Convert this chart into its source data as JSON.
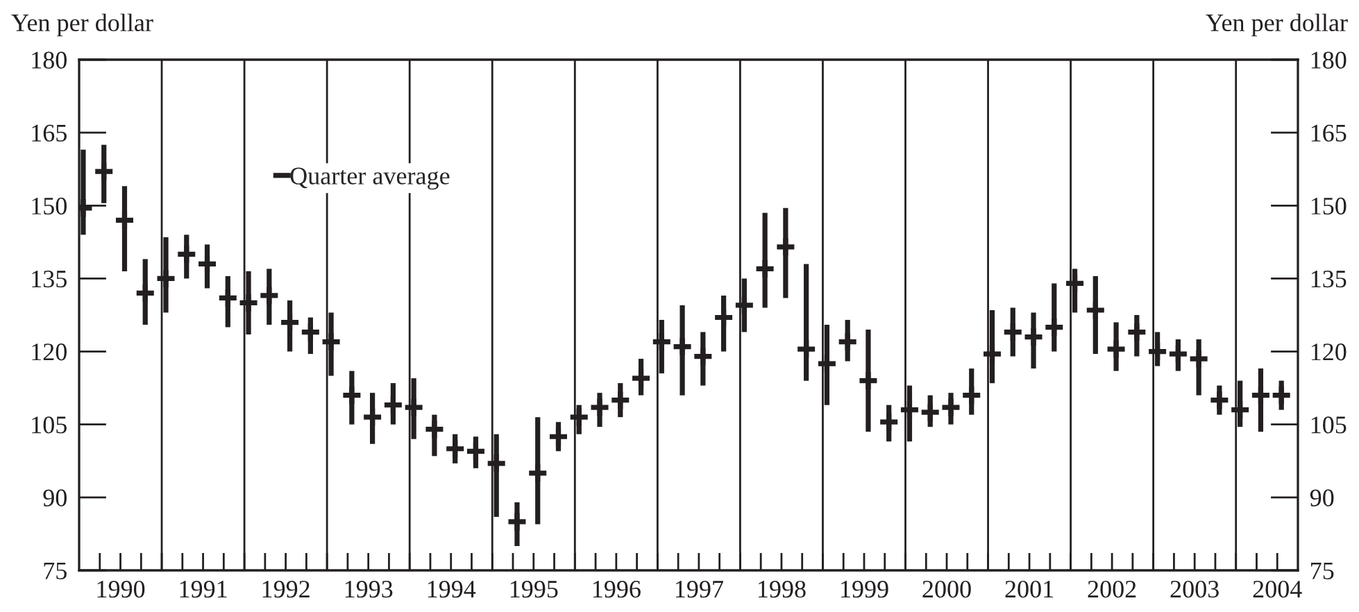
{
  "chart_data": {
    "type": "scatter",
    "ylabel": "Yen per dollar",
    "y2label": "Yen per dollar",
    "x": [
      1990.05,
      1990.3,
      1990.55,
      1990.8,
      1991.05,
      1991.3,
      1991.55,
      1991.8,
      1992.05,
      1992.3,
      1992.55,
      1992.8,
      1993.05,
      1993.3,
      1993.55,
      1993.8,
      1994.05,
      1994.3,
      1994.55,
      1994.8,
      1995.05,
      1995.3,
      1995.55,
      1995.8,
      1996.05,
      1996.3,
      1996.55,
      1996.8,
      1997.05,
      1997.3,
      1997.55,
      1997.8,
      1998.05,
      1998.3,
      1998.55,
      1998.8,
      1999.05,
      1999.3,
      1999.55,
      1999.8,
      2000.05,
      2000.3,
      2000.55,
      2000.8,
      2001.05,
      2001.3,
      2001.55,
      2001.8,
      2002.05,
      2002.3,
      2002.55,
      2002.8,
      2003.05,
      2003.3,
      2003.55,
      2003.8,
      2004.05,
      2004.3,
      2004.55
    ],
    "series": [
      {
        "name": "Quarter average",
        "color": "#231f20",
        "values": [
          149.5,
          157,
          147,
          132,
          135,
          140,
          138,
          131,
          130,
          131.5,
          126,
          124,
          122,
          111,
          106.5,
          109,
          108.5,
          104,
          100,
          99.5,
          97,
          85,
          95,
          102.5,
          106.5,
          108.5,
          110,
          114.5,
          122,
          121,
          119,
          127,
          129.5,
          137,
          141.5,
          120.5,
          117.5,
          122,
          114,
          105.5,
          108,
          107.5,
          108.5,
          111,
          119.5,
          124,
          123,
          125,
          134,
          128.5,
          120.5,
          124,
          120,
          119.5,
          118.5,
          110,
          108,
          111,
          111
        ],
        "errors": [
          [
            144,
            161.5
          ],
          [
            150.5,
            162.5
          ],
          [
            136.5,
            154
          ],
          [
            125.5,
            139
          ],
          [
            128,
            143.5
          ],
          [
            135,
            144
          ],
          [
            133,
            142
          ],
          [
            125,
            135.5
          ],
          [
            123.5,
            136.5
          ],
          [
            125.5,
            137
          ],
          [
            120,
            130.5
          ],
          [
            119.5,
            127
          ],
          [
            115,
            128
          ],
          [
            105,
            116
          ],
          [
            101,
            111.5
          ],
          [
            105,
            113.5
          ],
          [
            102,
            114.5
          ],
          [
            98.5,
            107
          ],
          [
            97,
            103
          ],
          [
            96,
            102.5
          ],
          [
            86,
            103
          ],
          [
            80,
            89
          ],
          [
            84.5,
            106.5
          ],
          [
            99.5,
            105.5
          ],
          [
            103,
            109
          ],
          [
            104.5,
            111.5
          ],
          [
            106.5,
            113.5
          ],
          [
            111,
            118.5
          ],
          [
            115.5,
            126.5
          ],
          [
            111,
            129.5
          ],
          [
            113,
            124
          ],
          [
            120,
            131.5
          ],
          [
            124,
            135
          ],
          [
            129,
            148.5
          ],
          [
            131,
            149.5
          ],
          [
            114,
            138
          ],
          [
            109,
            125.5
          ],
          [
            118,
            126.5
          ],
          [
            103.5,
            124.5
          ],
          [
            101.5,
            109
          ],
          [
            101.5,
            113
          ],
          [
            104.5,
            111
          ],
          [
            105,
            111.5
          ],
          [
            107,
            116.5
          ],
          [
            113.5,
            128.5
          ],
          [
            119,
            129
          ],
          [
            116.5,
            128
          ],
          [
            120,
            134
          ],
          [
            128,
            137
          ],
          [
            119.5,
            135.5
          ],
          [
            116,
            126
          ],
          [
            119,
            127.5
          ],
          [
            117,
            124
          ],
          [
            116,
            122.5
          ],
          [
            111,
            122.5
          ],
          [
            107,
            113
          ],
          [
            104.5,
            114
          ],
          [
            103.5,
            116.5
          ],
          [
            108,
            114
          ]
        ]
      }
    ],
    "ylim": [
      75,
      180
    ],
    "yticks": [
      75,
      90,
      105,
      120,
      135,
      150,
      165,
      180
    ],
    "y2lim": [
      75,
      180
    ],
    "y2ticks": [
      75,
      90,
      105,
      120,
      135,
      150,
      165,
      180
    ],
    "xlim": [
      1990,
      2004.75
    ],
    "xticks": [
      {
        "value": 1990.25,
        "label": null
      },
      {
        "value": 1990.5,
        "label": "1990"
      },
      {
        "value": 1990.75,
        "label": null
      },
      {
        "value": 1991,
        "label": null
      },
      {
        "value": 1991.25,
        "label": null
      },
      {
        "value": 1991.5,
        "label": "1991"
      },
      {
        "value": 1991.75,
        "label": null
      },
      {
        "value": 1992,
        "label": null
      },
      {
        "value": 1992.25,
        "label": null
      },
      {
        "value": 1992.5,
        "label": "1992"
      },
      {
        "value": 1992.75,
        "label": null
      },
      {
        "value": 1993,
        "label": null
      },
      {
        "value": 1993.25,
        "label": null
      },
      {
        "value": 1993.5,
        "label": "1993"
      },
      {
        "value": 1993.75,
        "label": null
      },
      {
        "value": 1994,
        "label": null
      },
      {
        "value": 1994.25,
        "label": null
      },
      {
        "value": 1994.5,
        "label": "1994"
      },
      {
        "value": 1994.75,
        "label": null
      },
      {
        "value": 1995,
        "label": null
      },
      {
        "value": 1995.25,
        "label": null
      },
      {
        "value": 1995.5,
        "label": "1995"
      },
      {
        "value": 1995.75,
        "label": null
      },
      {
        "value": 1996,
        "label": null
      },
      {
        "value": 1996.25,
        "label": null
      },
      {
        "value": 1996.5,
        "label": "1996"
      },
      {
        "value": 1996.75,
        "label": null
      },
      {
        "value": 1997,
        "label": null
      },
      {
        "value": 1997.25,
        "label": null
      },
      {
        "value": 1997.5,
        "label": "1997"
      },
      {
        "value": 1997.75,
        "label": null
      },
      {
        "value": 1998,
        "label": null
      },
      {
        "value": 1998.25,
        "label": null
      },
      {
        "value": 1998.5,
        "label": "1998"
      },
      {
        "value": 1998.75,
        "label": null
      },
      {
        "value": 1999,
        "label": null
      },
      {
        "value": 1999.25,
        "label": null
      },
      {
        "value": 1999.5,
        "label": "1999"
      },
      {
        "value": 1999.75,
        "label": null
      },
      {
        "value": 2000,
        "label": null
      },
      {
        "value": 2000.25,
        "label": null
      },
      {
        "value": 2000.5,
        "label": "2000"
      },
      {
        "value": 2000.75,
        "label": null
      },
      {
        "value": 2001,
        "label": null
      },
      {
        "value": 2001.25,
        "label": null
      },
      {
        "value": 2001.5,
        "label": "2001"
      },
      {
        "value": 2001.75,
        "label": null
      },
      {
        "value": 2002,
        "label": null
      },
      {
        "value": 2002.25,
        "label": null
      },
      {
        "value": 2002.5,
        "label": "2002"
      },
      {
        "value": 2002.75,
        "label": null
      },
      {
        "value": 2003,
        "label": null
      },
      {
        "value": 2003.25,
        "label": null
      },
      {
        "value": 2003.5,
        "label": "2003"
      },
      {
        "value": 2003.75,
        "label": null
      },
      {
        "value": 2004,
        "label": null
      },
      {
        "value": 2004.25,
        "label": null
      },
      {
        "value": 2004.5,
        "label": "2004"
      }
    ],
    "ref_lines": [
      {
        "axis": "x",
        "value": 1991
      },
      {
        "axis": "x",
        "value": 1992
      },
      {
        "axis": "x",
        "value": 1993
      },
      {
        "axis": "x",
        "value": 1994
      },
      {
        "axis": "x",
        "value": 1995
      },
      {
        "axis": "x",
        "value": 1996
      },
      {
        "axis": "x",
        "value": 1997
      },
      {
        "axis": "x",
        "value": 1998
      },
      {
        "axis": "x",
        "value": 1999
      },
      {
        "axis": "x",
        "value": 2000
      },
      {
        "axis": "x",
        "value": 2001
      },
      {
        "axis": "x",
        "value": 2002
      },
      {
        "axis": "x",
        "value": 2003
      },
      {
        "axis": "x",
        "value": 2004
      }
    ],
    "legend": "top left",
    "grid": false,
    "marker": "cross"
  }
}
